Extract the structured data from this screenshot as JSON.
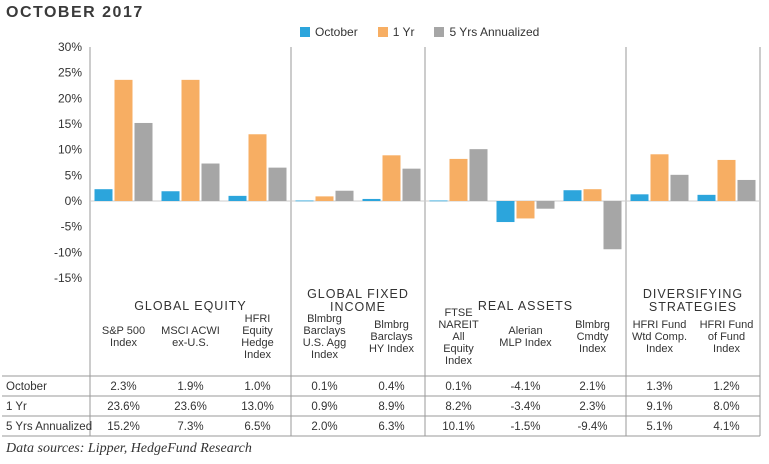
{
  "title": "OCTOBER 2017",
  "source": "Data sources: Lipper, HedgeFund Research",
  "colors": {
    "October": "#2ca5dc",
    "1 Yr": "#f7ae63",
    "5 Yrs Annualized": "#a6a6a6"
  },
  "chart_data": {
    "type": "bar",
    "ylim": [
      -15,
      30
    ],
    "yticks": [
      "-15%",
      "-10%",
      "-5%",
      "0%",
      "5%",
      "10%",
      "15%",
      "20%",
      "25%",
      "30%"
    ],
    "grid": false,
    "legend": "top",
    "groups": [
      {
        "label": "GLOBAL EQUITY",
        "categories": [
          "S&P 500 Index",
          "MSCI ACWI ex-U.S.",
          "HFRI Equity Hedge Index"
        ]
      },
      {
        "label": "GLOBAL FIXED INCOME",
        "categories": [
          "Blmbrg Barclays U.S. Agg Index",
          "Blmbrg Barclays HY Index"
        ]
      },
      {
        "label": "REAL ASSETS",
        "categories": [
          "FTSE NAREIT All Equity Index",
          "Alerian MLP Index",
          "Blmbrg Cmdty Index"
        ]
      },
      {
        "label": "DIVERSIFYING STRATEGIES",
        "categories": [
          "HFRI Fund Wtd Comp. Index",
          "HFRI Fund of Fund Index"
        ]
      }
    ],
    "categories": [
      "S&P 500 Index",
      "MSCI ACWI ex-U.S.",
      "HFRI Equity Hedge Index",
      "Blmbrg Barclays U.S. Agg Index",
      "Blmbrg Barclays HY Index",
      "FTSE NAREIT All Equity Index",
      "Alerian MLP Index",
      "Blmbrg Cmdty Index",
      "HFRI Fund Wtd Comp. Index",
      "HFRI Fund of Fund Index"
    ],
    "series": [
      {
        "name": "October",
        "values": [
          2.3,
          1.9,
          1.0,
          0.1,
          0.4,
          0.1,
          -4.1,
          2.1,
          1.3,
          1.2
        ],
        "labels": [
          "2.3%",
          "1.9%",
          "1.0%",
          "0.1%",
          "0.4%",
          "0.1%",
          "-4.1%",
          "2.1%",
          "1.3%",
          "1.2%"
        ]
      },
      {
        "name": "1 Yr",
        "values": [
          23.6,
          23.6,
          13.0,
          0.9,
          8.9,
          8.2,
          -3.4,
          2.3,
          9.1,
          8.0
        ],
        "labels": [
          "23.6%",
          "23.6%",
          "13.0%",
          "0.9%",
          "8.9%",
          "8.2%",
          "-3.4%",
          "2.3%",
          "9.1%",
          "8.0%"
        ]
      },
      {
        "name": "5 Yrs Annualized",
        "values": [
          15.2,
          7.3,
          6.5,
          2.0,
          6.3,
          10.1,
          -1.5,
          -9.4,
          5.1,
          4.1
        ],
        "labels": [
          "15.2%",
          "7.3%",
          "6.5%",
          "2.0%",
          "6.3%",
          "10.1%",
          "-1.5%",
          "-9.4%",
          "5.1%",
          "4.1%"
        ]
      }
    ]
  }
}
